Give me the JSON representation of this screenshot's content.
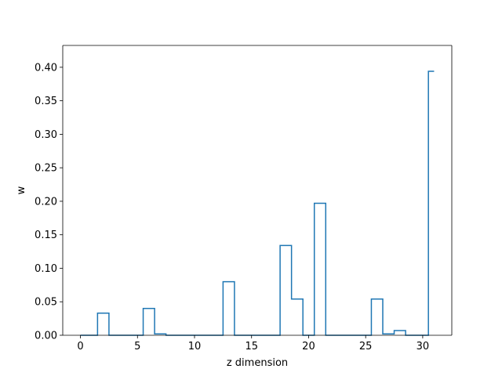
{
  "chart_data": {
    "type": "line",
    "drawstyle": "steps-mid",
    "title": "",
    "xlabel": "z dimension",
    "ylabel": "w",
    "xlim": [
      -1.55,
      32.55
    ],
    "ylim": [
      0,
      0.4326
    ],
    "x_ticks": [
      0,
      5,
      10,
      15,
      20,
      25,
      30
    ],
    "y_ticks": [
      0.0,
      0.05,
      0.1,
      0.15,
      0.2,
      0.25,
      0.3,
      0.35,
      0.4
    ],
    "x_tick_labels": [
      "0",
      "5",
      "10",
      "15",
      "20",
      "25",
      "30"
    ],
    "y_tick_labels": [
      "0.00",
      "0.05",
      "0.10",
      "0.15",
      "0.20",
      "0.25",
      "0.30",
      "0.35",
      "0.40"
    ],
    "grid": false,
    "legend": false,
    "line_color": "#1f77b4",
    "series": [
      {
        "x": [
          0,
          1,
          2,
          3,
          4,
          5,
          6,
          7,
          8,
          9,
          10,
          11,
          12,
          13,
          14,
          15,
          16,
          17,
          18,
          19,
          20,
          21,
          22,
          23,
          24,
          25,
          26,
          27,
          28,
          29,
          30,
          31
        ],
        "values": [
          0,
          0,
          0.033,
          0,
          0,
          0,
          0.04,
          0.002,
          0,
          0,
          0,
          0,
          0,
          0.08,
          0,
          0,
          0,
          0,
          0.134,
          0.054,
          0,
          0.197,
          0,
          0,
          0,
          0,
          0.054,
          0.002,
          0.007,
          0,
          0,
          0.394
        ]
      }
    ]
  }
}
